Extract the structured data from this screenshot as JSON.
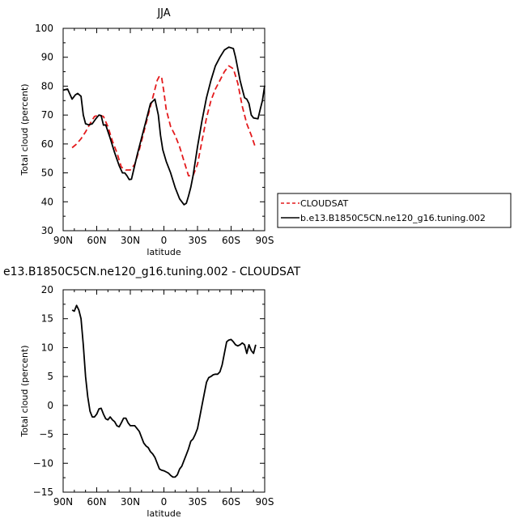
{
  "chart_data": [
    {
      "type": "line",
      "title": "JJA",
      "xlabel": "latitude",
      "ylabel": "Total cloud (percent)",
      "xlim": [
        90,
        -90
      ],
      "ylim": [
        30,
        100
      ],
      "x_ticks": [
        90,
        60,
        30,
        0,
        -30,
        -60,
        -90
      ],
      "x_tick_labels": [
        "90N",
        "60N",
        "30N",
        "0",
        "30S",
        "60S",
        "90S"
      ],
      "y_ticks": [
        30,
        40,
        50,
        60,
        70,
        80,
        90,
        100
      ],
      "y_tick_labels": [
        "30",
        "40",
        "50",
        "60",
        "70",
        "80",
        "90",
        "100"
      ],
      "legend_position": "right",
      "series": [
        {
          "name": "CLOUDSAT",
          "color": "#e41a1c",
          "dash": "dashed",
          "x": [
            82,
            78,
            74,
            70,
            66,
            62,
            58,
            54,
            50,
            46,
            42,
            38,
            34,
            30,
            26,
            22,
            18,
            14,
            10,
            6,
            4,
            2,
            0,
            -2,
            -6,
            -10,
            -14,
            -18,
            -22,
            -26,
            -30,
            -34,
            -38,
            -42,
            -46,
            -50,
            -54,
            -58,
            -62,
            -66,
            -70,
            -74,
            -78,
            -82
          ],
          "y": [
            58.7,
            60,
            61.8,
            64.2,
            67,
            69.5,
            70,
            69.5,
            66,
            61,
            57,
            52,
            51,
            51,
            53,
            58,
            64,
            70,
            76,
            82,
            83.5,
            83,
            78,
            72,
            66,
            63,
            59,
            54,
            49,
            49,
            53,
            61,
            69,
            75,
            79,
            82,
            85,
            87,
            86,
            81,
            73,
            67,
            63,
            58.5
          ]
        },
        {
          "name": "b.e13.B1850C5CN.ne120_g16.tuning.002",
          "color": "#000000",
          "dash": "solid",
          "x": [
            90,
            86,
            82,
            79,
            77,
            74,
            72,
            70,
            67,
            64,
            61,
            58,
            56,
            54,
            52,
            48,
            44,
            40,
            37,
            35,
            33,
            31,
            29,
            27,
            24,
            20,
            16,
            12,
            8,
            5,
            3,
            1,
            -2,
            -6,
            -10,
            -14,
            -18,
            -20,
            -22,
            -24,
            -26,
            -30,
            -34,
            -38,
            -42,
            -46,
            -50,
            -54,
            -58,
            -62,
            -64,
            -66,
            -68,
            -70,
            -72,
            -74,
            -76,
            -78,
            -80,
            -84,
            -86,
            -88,
            -90
          ],
          "y": [
            78.6,
            79,
            75.5,
            77,
            77.5,
            76.5,
            70,
            67,
            66.6,
            67,
            68.6,
            70,
            69.8,
            66.5,
            66.6,
            62,
            57,
            52.5,
            50,
            50,
            49,
            47.7,
            47.8,
            51,
            56,
            62,
            68,
            74,
            75.5,
            70,
            63,
            58,
            54,
            50,
            45,
            41,
            39,
            39.5,
            42,
            45,
            49,
            59,
            68,
            76,
            82,
            87,
            90,
            92.5,
            93.5,
            93,
            90,
            86,
            82,
            79,
            76,
            75.5,
            74,
            70,
            69,
            68.7,
            72,
            75,
            80.2
          ]
        }
      ]
    },
    {
      "type": "line",
      "title": "e13.B1850C5CN.ne120_g16.tuning.002 - CLOUDSAT",
      "xlabel": "latitude",
      "ylabel": "Total cloud (percent)",
      "xlim": [
        90,
        -90
      ],
      "ylim": [
        -15,
        20
      ],
      "x_ticks": [
        90,
        60,
        30,
        0,
        -30,
        -60,
        -90
      ],
      "x_tick_labels": [
        "90N",
        "60N",
        "30N",
        "0",
        "30S",
        "60S",
        "90S"
      ],
      "y_ticks": [
        -15,
        -10,
        -5,
        0,
        5,
        10,
        15,
        20
      ],
      "y_tick_labels": [
        "−15",
        "−10",
        "−5",
        "0",
        "5",
        "10",
        "15",
        "20"
      ],
      "series": [
        {
          "color": "#000000",
          "dash": "solid",
          "x": [
            82,
            80,
            78,
            76,
            74,
            72,
            70,
            68,
            66,
            64,
            62,
            60,
            58,
            56,
            54,
            52,
            50,
            48,
            46,
            44,
            42,
            40,
            38,
            36,
            34,
            32,
            30,
            28,
            26,
            24,
            22,
            20,
            18,
            16,
            14,
            12,
            10,
            8,
            6,
            4,
            2,
            0,
            -2,
            -4,
            -6,
            -8,
            -10,
            -12,
            -14,
            -16,
            -18,
            -20,
            -22,
            -24,
            -26,
            -28,
            -30,
            -32,
            -34,
            -36,
            -38,
            -40,
            -42,
            -44,
            -46,
            -48,
            -50,
            -52,
            -54,
            -56,
            -58,
            -60,
            -62,
            -64,
            -66,
            -68,
            -70,
            -72,
            -74,
            -76,
            -78,
            -80,
            -82
          ],
          "y": [
            16.5,
            16.3,
            17.3,
            16.5,
            15,
            10.5,
            5,
            1.5,
            -1,
            -2,
            -2,
            -1.5,
            -0.6,
            -0.5,
            -1.5,
            -2.3,
            -2.5,
            -2,
            -2.5,
            -2.8,
            -3.5,
            -3.7,
            -3,
            -2.2,
            -2.2,
            -3,
            -3.5,
            -3.5,
            -3.5,
            -4,
            -4.5,
            -5.5,
            -6.5,
            -7,
            -7.3,
            -8,
            -8.4,
            -9,
            -10,
            -11,
            -11.2,
            -11.3,
            -11.5,
            -11.7,
            -12.1,
            -12.4,
            -12.4,
            -12,
            -11,
            -10.5,
            -9.5,
            -8.5,
            -7.5,
            -6.2,
            -5.8,
            -5,
            -4,
            -2,
            0,
            2,
            4,
            4.8,
            5,
            5.3,
            5.4,
            5.4,
            5.8,
            7,
            9,
            11,
            11.3,
            11.4,
            11,
            10.5,
            10.3,
            10.5,
            10.8,
            10.5,
            9,
            10.5,
            9.5,
            9,
            10.5
          ]
        }
      ]
    }
  ]
}
